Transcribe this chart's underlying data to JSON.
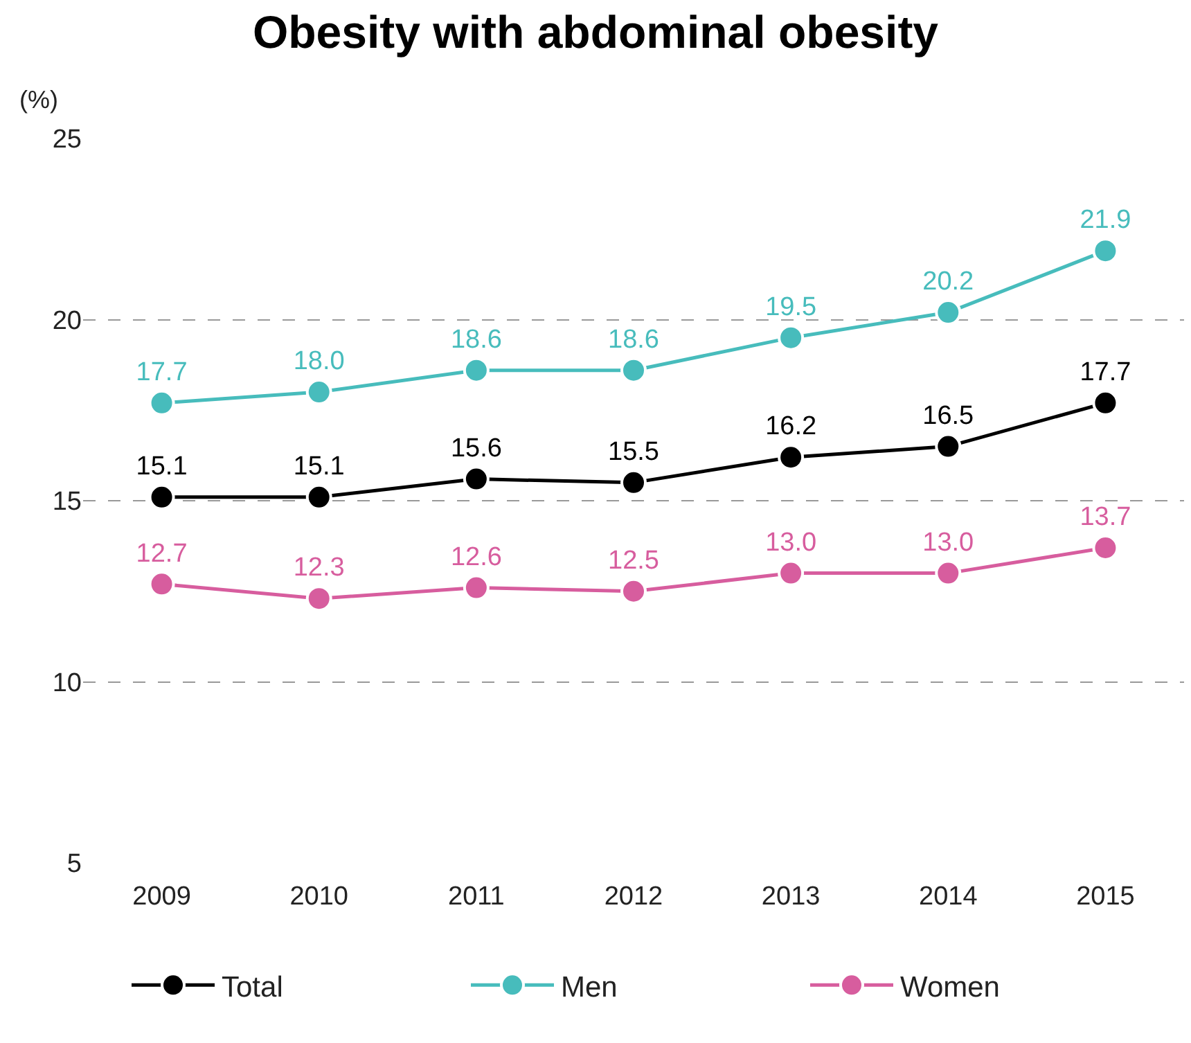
{
  "chart_data": {
    "type": "line",
    "title": "Obesity with abdominal obesity",
    "ylabel": "(%)",
    "categories": [
      "2009",
      "2010",
      "2011",
      "2012",
      "2013",
      "2014",
      "2015"
    ],
    "series": [
      {
        "name": "Total",
        "color": "#000000",
        "values": [
          15.1,
          15.1,
          15.6,
          15.5,
          16.2,
          16.5,
          17.7
        ],
        "value_labels": [
          "15.1",
          "15.1",
          "15.6",
          "15.5",
          "16.2",
          "16.5",
          "17.7"
        ]
      },
      {
        "name": "Men",
        "color": "#47bcbc",
        "values": [
          17.7,
          18.0,
          18.6,
          18.6,
          19.5,
          20.2,
          21.9
        ],
        "value_labels": [
          "17.7",
          "18.0",
          "18.6",
          "18.6",
          "19.5",
          "20.2",
          "21.9"
        ]
      },
      {
        "name": "Women",
        "color": "#d75d9e",
        "values": [
          12.7,
          12.3,
          12.6,
          12.5,
          13.0,
          13.0,
          13.7
        ],
        "value_labels": [
          "12.7",
          "12.3",
          "12.6",
          "12.5",
          "13.0",
          "13.0",
          "13.7"
        ]
      }
    ],
    "ylim": [
      5,
      25
    ],
    "yticks": [
      5,
      10,
      15,
      20,
      25
    ],
    "grid": "y",
    "legend": "bottom",
    "marker": "circle",
    "line_style": "solid"
  }
}
